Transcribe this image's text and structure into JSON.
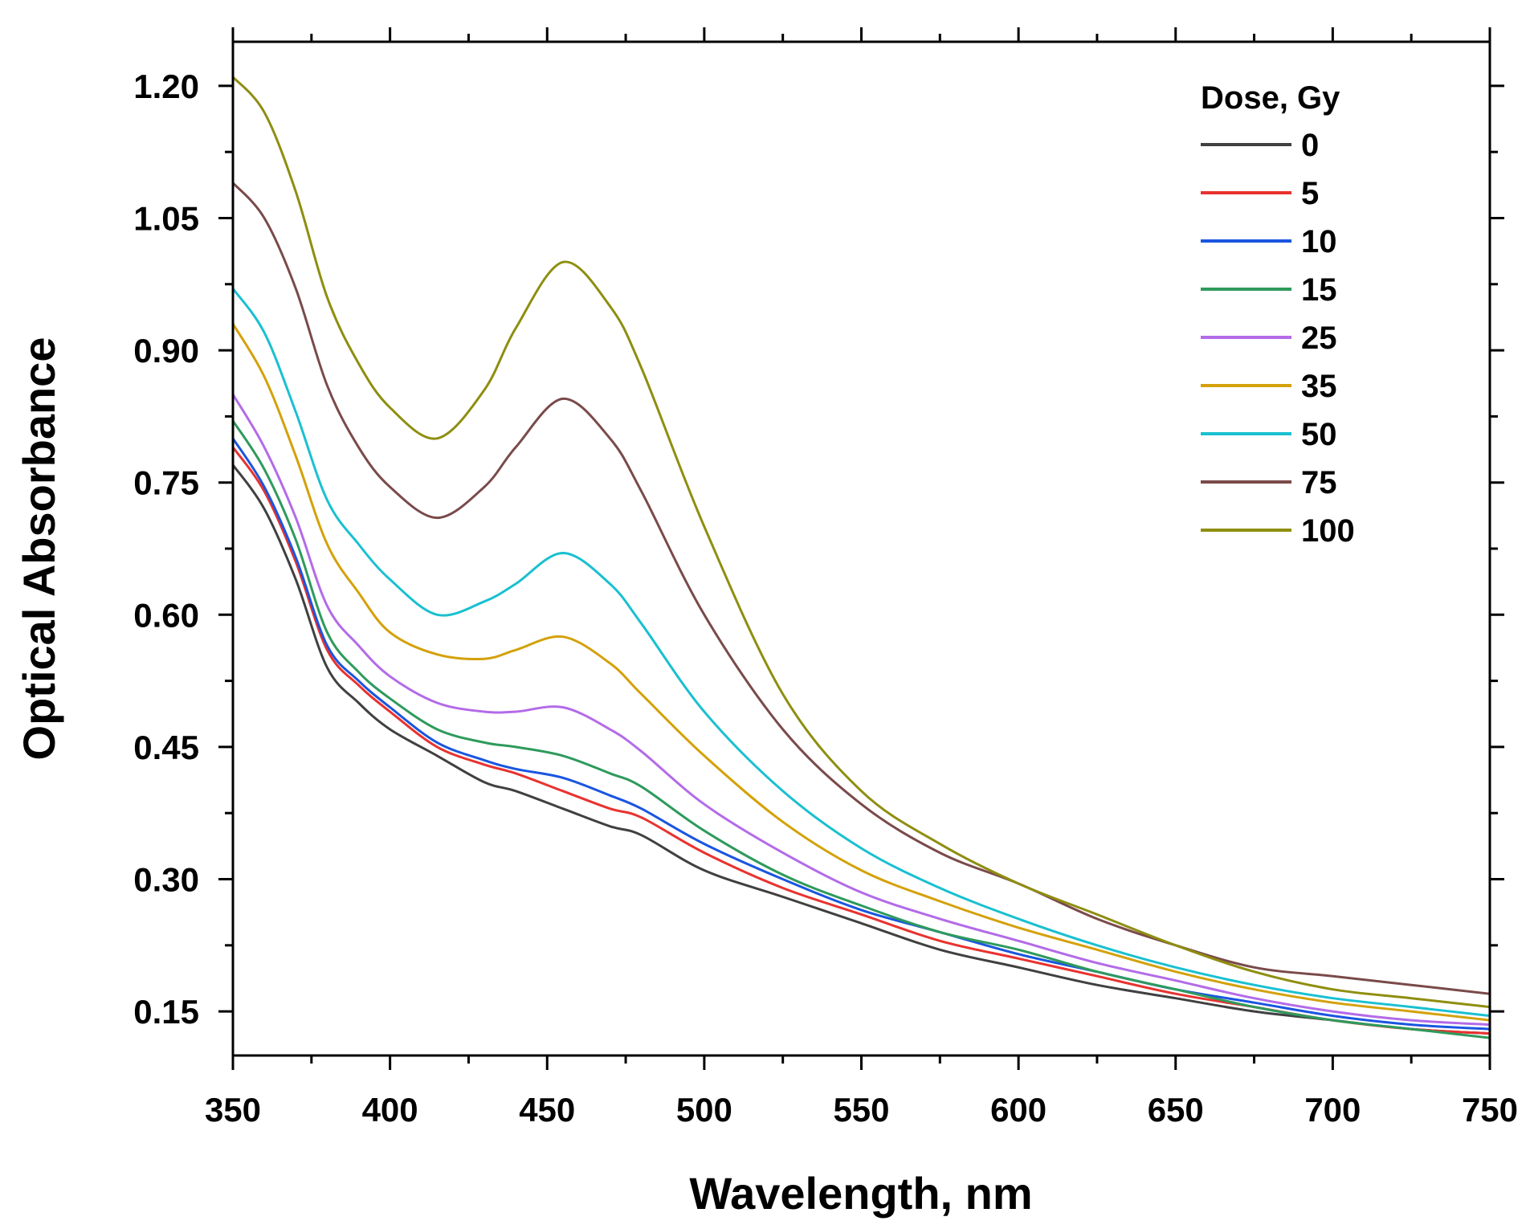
{
  "chart_data": {
    "type": "line",
    "title": "",
    "xlabel": "Wavelength, nm",
    "ylabel": "Optical Absorbance",
    "xlim": [
      350,
      750
    ],
    "ylim": [
      0.1,
      1.25
    ],
    "xticks": [
      350,
      400,
      450,
      500,
      550,
      600,
      650,
      700,
      750
    ],
    "xtick_labels": [
      "350",
      "400",
      "450",
      "500",
      "550",
      "600",
      "650",
      "700",
      "750"
    ],
    "yticks": [
      0.15,
      0.3,
      0.45,
      0.6,
      0.75,
      0.9,
      1.05,
      1.2
    ],
    "ytick_labels": [
      "0.15",
      "0.30",
      "0.45",
      "0.60",
      "0.75",
      "0.90",
      "1.05",
      "1.20"
    ],
    "grid": false,
    "legend": {
      "title": "Dose, Gy",
      "position": "top-right"
    },
    "x": [
      350,
      360,
      370,
      380,
      390,
      400,
      415,
      430,
      440,
      455,
      470,
      480,
      500,
      525,
      550,
      575,
      600,
      625,
      650,
      675,
      700,
      725,
      750
    ],
    "series": [
      {
        "name": "0",
        "color": "#404040",
        "values": [
          0.77,
          0.72,
          0.64,
          0.54,
          0.5,
          0.47,
          0.44,
          0.41,
          0.4,
          0.38,
          0.36,
          0.35,
          0.31,
          0.28,
          0.25,
          0.22,
          0.2,
          0.18,
          0.165,
          0.15,
          0.14,
          0.13,
          0.125
        ]
      },
      {
        "name": "5",
        "color": "#e8322f",
        "values": [
          0.79,
          0.74,
          0.66,
          0.56,
          0.52,
          0.49,
          0.45,
          0.43,
          0.42,
          0.4,
          0.38,
          0.37,
          0.33,
          0.29,
          0.26,
          0.23,
          0.21,
          0.19,
          0.17,
          0.155,
          0.14,
          0.13,
          0.125
        ]
      },
      {
        "name": "10",
        "color": "#1a55e0",
        "values": [
          0.8,
          0.745,
          0.665,
          0.565,
          0.525,
          0.495,
          0.455,
          0.435,
          0.425,
          0.415,
          0.395,
          0.38,
          0.34,
          0.3,
          0.265,
          0.24,
          0.215,
          0.195,
          0.175,
          0.16,
          0.145,
          0.135,
          0.13
        ]
      },
      {
        "name": "15",
        "color": "#2e9a5c",
        "values": [
          0.82,
          0.765,
          0.685,
          0.58,
          0.535,
          0.505,
          0.47,
          0.455,
          0.45,
          0.44,
          0.42,
          0.405,
          0.355,
          0.305,
          0.27,
          0.24,
          0.22,
          0.195,
          0.175,
          0.155,
          0.14,
          0.13,
          0.12
        ]
      },
      {
        "name": "25",
        "color": "#b36be8",
        "values": [
          0.85,
          0.79,
          0.71,
          0.61,
          0.565,
          0.53,
          0.5,
          0.49,
          0.49,
          0.495,
          0.47,
          0.445,
          0.385,
          0.33,
          0.285,
          0.255,
          0.23,
          0.205,
          0.185,
          0.165,
          0.15,
          0.14,
          0.135
        ]
      },
      {
        "name": "35",
        "color": "#d4a10a",
        "values": [
          0.93,
          0.87,
          0.78,
          0.68,
          0.625,
          0.58,
          0.555,
          0.55,
          0.56,
          0.575,
          0.545,
          0.51,
          0.44,
          0.365,
          0.31,
          0.275,
          0.245,
          0.22,
          0.195,
          0.175,
          0.16,
          0.15,
          0.14
        ]
      },
      {
        "name": "50",
        "color": "#19c0d0",
        "values": [
          0.97,
          0.92,
          0.83,
          0.73,
          0.68,
          0.64,
          0.6,
          0.615,
          0.635,
          0.67,
          0.635,
          0.59,
          0.49,
          0.4,
          0.335,
          0.29,
          0.255,
          0.225,
          0.2,
          0.18,
          0.165,
          0.155,
          0.145
        ]
      },
      {
        "name": "75",
        "color": "#7a4a4a",
        "values": [
          1.09,
          1.05,
          0.97,
          0.86,
          0.79,
          0.745,
          0.71,
          0.745,
          0.79,
          0.845,
          0.8,
          0.74,
          0.6,
          0.47,
          0.385,
          0.33,
          0.295,
          0.255,
          0.225,
          0.2,
          0.19,
          0.18,
          0.17
        ]
      },
      {
        "name": "100",
        "color": "#8e8e10",
        "values": [
          1.21,
          1.17,
          1.08,
          0.96,
          0.885,
          0.835,
          0.8,
          0.855,
          0.925,
          1.0,
          0.95,
          0.88,
          0.7,
          0.51,
          0.4,
          0.34,
          0.295,
          0.26,
          0.225,
          0.195,
          0.175,
          0.165,
          0.155
        ]
      }
    ]
  }
}
